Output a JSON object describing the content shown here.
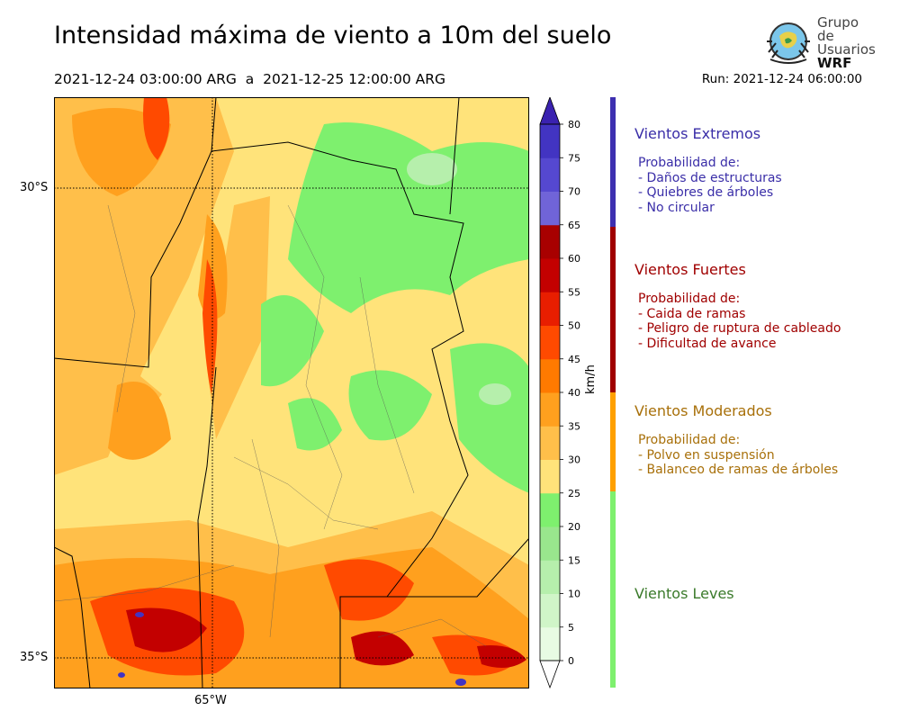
{
  "header": {
    "title": "Intensidad máxima de viento a 10m del suelo",
    "period": "2021-12-24 03:00:00 ARG  a  2021-12-25 12:00:00 ARG",
    "run": "Run: 2021-12-24 06:00:00"
  },
  "logo": {
    "line1": "Grupo de",
    "line2": "Usuarios",
    "line3": "WRF"
  },
  "map": {
    "lat_labels": [
      "30°S",
      "35°S"
    ],
    "lon_labels": [
      "65°W"
    ]
  },
  "colorbar": {
    "unit": "km/h",
    "ticks": [
      "0",
      "5",
      "10",
      "15",
      "20",
      "25",
      "30",
      "35",
      "40",
      "45",
      "50",
      "55",
      "60",
      "65",
      "70",
      "75",
      "80"
    ],
    "colors": [
      "#e8fbe3",
      "#d0f5c8",
      "#b6efac",
      "#99e68d",
      "#7ef06e",
      "#ffe37a",
      "#ffbf4a",
      "#ffa01e",
      "#ff7a00",
      "#ff4a00",
      "#e81e00",
      "#c30000",
      "#a80000",
      "#7064d8",
      "#5548d0",
      "#4234c2"
    ],
    "extend_low": "#ffffff",
    "extend_high": "#3a22b0"
  },
  "legend": [
    {
      "title": "Vientos Extremos",
      "color": "#3d2fb0",
      "text_color": "#3a2ea8",
      "lines": [
        "Probabilidad de:",
        "- Daños de estructuras",
        "- Quiebres de árboles",
        "- No circular"
      ]
    },
    {
      "title": "Vientos Fuertes",
      "color": "#a00000",
      "text_color": "#a00000",
      "lines": [
        "Probabilidad de:",
        "- Caida de ramas",
        "- Peligro de ruptura de cableado",
        "- Dificultad de avance"
      ]
    },
    {
      "title": "Vientos Moderados",
      "color": "#ffa000",
      "text_color": "#a8700a",
      "lines": [
        "Probabilidad de:",
        "- Polvo en suspensión",
        "- Balanceo de ramas de árboles"
      ]
    },
    {
      "title": "Vientos Leves",
      "color": "#7ef06e",
      "text_color": "#3a7a2a",
      "lines": []
    }
  ]
}
